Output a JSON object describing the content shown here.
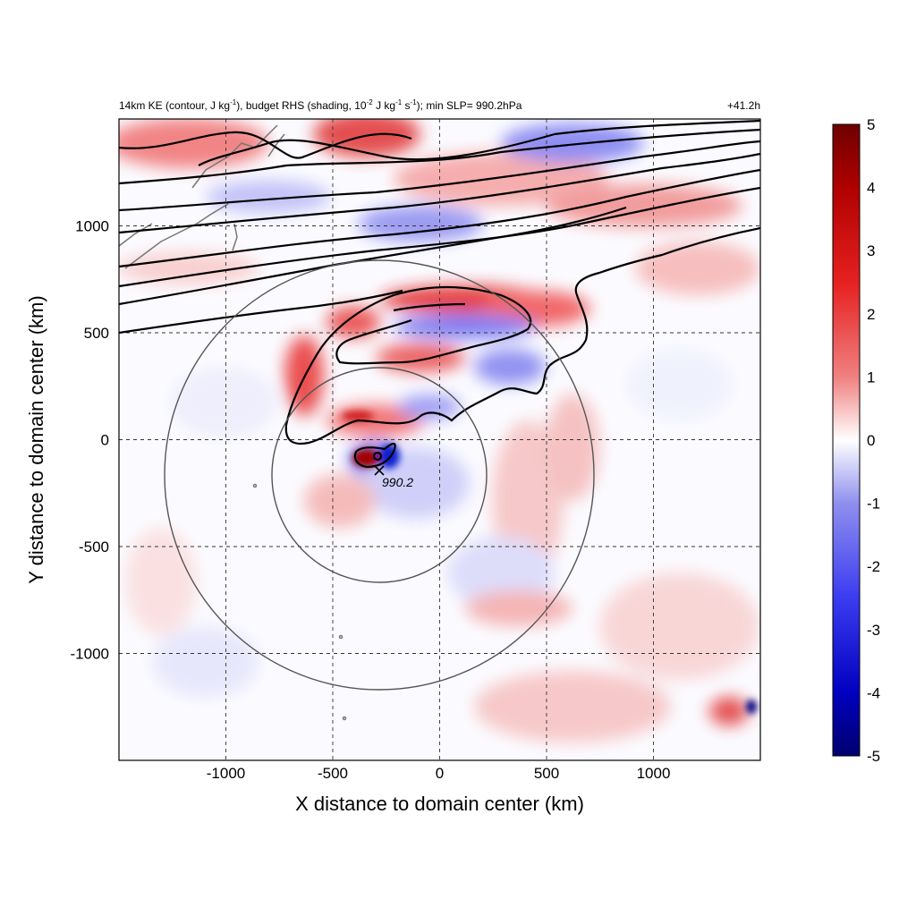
{
  "chart_data": {
    "type": "heatmap",
    "title_left": "14km KE (contour, J kg",
    "title_sup1": "-1",
    "title_mid1": "), budget RHS (shading, 10",
    "title_sup2": "-2",
    "title_mid2": " J kg",
    "title_sup3": "-1",
    "title_mid3": " s",
    "title_sup4": "-1",
    "title_end": "); min SLP= 990.2hPa",
    "title_right": "+41.2h",
    "xlabel": "X distance to domain center (km)",
    "ylabel": "Y distance to domain center (km)",
    "xlim": [
      -1500,
      1500
    ],
    "ylim": [
      -1500,
      1500
    ],
    "xticks": [
      -1000,
      -500,
      0,
      500,
      1000
    ],
    "yticks": [
      1000,
      500,
      0,
      -500,
      -1000
    ],
    "xtick_labels": [
      "-1000",
      "-500",
      "0",
      "500",
      "1000"
    ],
    "ytick_labels": [
      "1000",
      "500",
      "0",
      "-500",
      "-1000"
    ],
    "grid": "dashed",
    "colorbar": {
      "min": -5,
      "max": 5,
      "ticks": [
        5,
        4,
        3,
        2,
        1,
        0,
        -1,
        -2,
        -3,
        -4,
        -5
      ],
      "tick_labels": [
        "5",
        "4",
        "3",
        "2",
        "1",
        "0",
        "-1",
        "-2",
        "-3",
        "-4",
        "-5"
      ],
      "colormap": "blue-white-red"
    },
    "center_marker": {
      "x": -280,
      "y": -160,
      "label": "990.2"
    },
    "range_rings_km": [
      500,
      1000
    ],
    "colors": {
      "positive": "#d7191c",
      "negative": "#2233cc",
      "max_pos": "#6e0000",
      "max_neg": "#000080",
      "contour": "#000000",
      "ring": "#555555",
      "coast": "#777777"
    }
  }
}
